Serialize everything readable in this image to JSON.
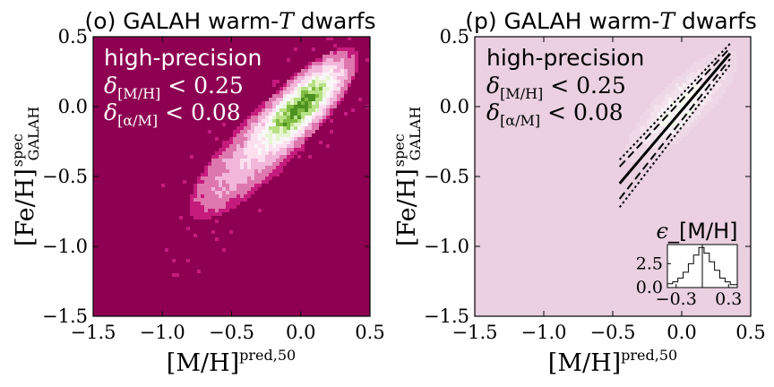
{
  "chart_data": [
    {
      "type": "heatmap",
      "title": "(o) GALAH warm-T dwarfs",
      "title_parts": {
        "prefix": "(o) GALAH warm-",
        "italic": "T",
        "suffix": " dwarfs"
      },
      "xlabel": "[M/H]^pred,50",
      "xlabel_parts": {
        "main": "[M/H]",
        "sup": "pred,50"
      },
      "ylabel": "[Fe/H]^spec_GALAH",
      "ylabel_parts": {
        "main": "[Fe/H]",
        "sup": "spec",
        "sub": "GALAH"
      },
      "xlim": [
        -1.5,
        0.5
      ],
      "ylim": [
        -1.5,
        0.5
      ],
      "xticks": [
        -1.5,
        -1.0,
        -0.5,
        0.0,
        0.5
      ],
      "yticks": [
        -1.5,
        -1.0,
        -0.5,
        0.0,
        0.5
      ],
      "xtick_labels": [
        "−1.5",
        "−1.0",
        "−0.5",
        "0.0",
        "0.5"
      ],
      "ytick_labels": [
        "−1.5",
        "−1.0",
        "−0.5",
        "0.0",
        "0.5"
      ],
      "colormap": "PiYG",
      "background_color": "#8e0152",
      "density_peak_color": "#2a7a1f",
      "density_ridge": {
        "x": [
          -0.85,
          -0.5,
          -0.2,
          0.0,
          0.15,
          0.3
        ],
        "y": [
          -0.62,
          -0.32,
          -0.12,
          0.0,
          0.15,
          0.33
        ]
      },
      "annotations": {
        "line1": "high-precision",
        "line2_sym": "δ",
        "line2_sub": "[M/H]",
        "line2_rest": " < 0.25",
        "line3_sym": "δ",
        "line3_sub": "[α/M]",
        "line3_rest": " < 0.08"
      }
    },
    {
      "type": "heatmap",
      "title": "(p) GALAH warm-T dwarfs",
      "title_parts": {
        "prefix": "(p) GALAH warm-",
        "italic": "T",
        "suffix": " dwarfs"
      },
      "xlabel": "[M/H]^pred,50",
      "xlabel_parts": {
        "main": "[M/H]",
        "sup": "pred,50"
      },
      "ylabel": "[Fe/H]^spec_GALAH",
      "ylabel_parts": {
        "main": "[Fe/H]",
        "sup": "spec",
        "sub": "GALAH"
      },
      "xlim": [
        -1.5,
        0.5
      ],
      "ylim": [
        -1.5,
        0.5
      ],
      "xticks": [
        -1.5,
        -1.0,
        -0.5,
        0.0,
        0.5
      ],
      "yticks": [
        -1.5,
        -1.0,
        -0.5,
        0.0,
        0.5
      ],
      "xtick_labels": [
        "−1.5",
        "−1.0",
        "−0.5",
        "0.0",
        "0.5"
      ],
      "ytick_labels": [
        "−1.5",
        "−1.0",
        "−0.5",
        "0.0",
        "0.5"
      ],
      "background_color": "#ead0e0",
      "annotations": {
        "line1": "high-precision",
        "line2_sym": "δ",
        "line2_sub": "[M/H]",
        "line2_rest": " < 0.25",
        "line3_sym": "δ",
        "line3_sub": "[α/M]",
        "line3_rest": " < 0.08"
      },
      "lines": [
        {
          "style": "solid",
          "x": [
            -0.45,
            0.35
          ],
          "y": [
            -0.55,
            0.38
          ]
        },
        {
          "style": "dashed",
          "x": [
            -0.45,
            0.35
          ],
          "y": [
            -0.43,
            0.42
          ]
        },
        {
          "style": "dashed",
          "x": [
            -0.45,
            0.35
          ],
          "y": [
            -0.66,
            0.34
          ]
        },
        {
          "style": "dotted",
          "x": [
            -0.45,
            0.35
          ],
          "y": [
            -0.38,
            0.45
          ]
        },
        {
          "style": "dotted",
          "x": [
            -0.45,
            0.35
          ],
          "y": [
            -0.72,
            0.3
          ]
        }
      ],
      "inset": {
        "title": "ϵ_[M/H]",
        "title_parts": {
          "sym": "ϵ",
          "rest": "_[M/H]"
        },
        "type": "histogram",
        "xlim": [
          -0.4,
          0.4
        ],
        "ylim": [
          0,
          4.5
        ],
        "xtick_labels": [
          "−0.3",
          "0.3"
        ],
        "xticks": [
          -0.3,
          0.3
        ],
        "ytick_labels": [
          "0.0",
          "2.5"
        ],
        "yticks": [
          0.0,
          2.5
        ],
        "bin_edges": [
          -0.4,
          -0.34,
          -0.28,
          -0.22,
          -0.16,
          -0.1,
          -0.04,
          0.02,
          0.08,
          0.14,
          0.2,
          0.26,
          0.32,
          0.4
        ],
        "counts": [
          0.4,
          0.6,
          1.0,
          1.6,
          2.5,
          3.4,
          4.2,
          3.6,
          2.7,
          1.8,
          1.0,
          0.6,
          0.3
        ],
        "vline_x": 0.0
      }
    }
  ]
}
